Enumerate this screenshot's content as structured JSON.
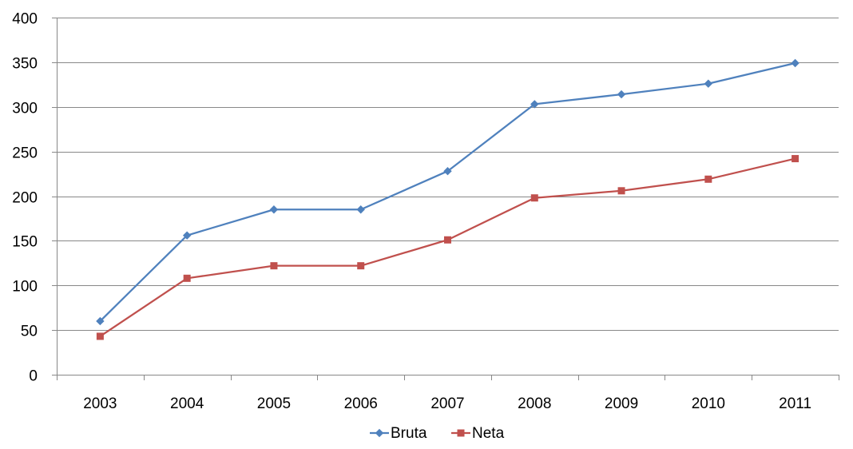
{
  "chart_data": {
    "type": "line",
    "categories": [
      "2003",
      "2004",
      "2005",
      "2006",
      "2007",
      "2008",
      "2009",
      "2010",
      "2011"
    ],
    "series": [
      {
        "name": "Bruta",
        "color": "#4F81BD",
        "marker": "diamond",
        "values": [
          60,
          156,
          185,
          185,
          228,
          303,
          314,
          326,
          349
        ]
      },
      {
        "name": "Neta",
        "color": "#C0504D",
        "marker": "square",
        "values": [
          43,
          108,
          122,
          122,
          151,
          198,
          206,
          219,
          242
        ]
      }
    ],
    "ylim": [
      0,
      400
    ],
    "yticks": [
      "0",
      "50",
      "100",
      "150",
      "200",
      "250",
      "300",
      "350",
      "400"
    ],
    "grid": true,
    "gridline_color": "#888888",
    "legend": "bottom-center"
  }
}
